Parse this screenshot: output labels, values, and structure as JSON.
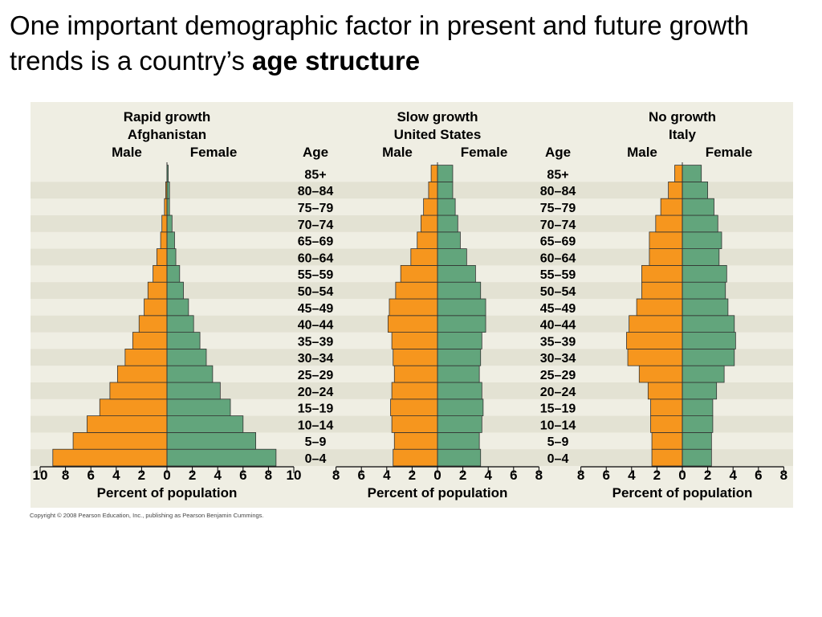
{
  "title": {
    "part1": "One important demographic factor in present and future growth trends is a country’s ",
    "part2": "age structure"
  },
  "copyright": "Copyright © 2008 Pearson Education, Inc., publishing as Pearson Benjamin Cummings.",
  "colors": {
    "male": "#f6961e",
    "female": "#62a57c",
    "band": "#e3e2d3",
    "background": "#efeee3",
    "outline": "#333333"
  },
  "chart_data": [
    {
      "type": "bar",
      "orientation": "horizontal-population-pyramid",
      "title": "Rapid growth",
      "subtitle": "Afghanistan",
      "male_label": "Male",
      "female_label": "Female",
      "age_label": "Age",
      "xlabel": "Percent of population",
      "xlim": [
        -10,
        10
      ],
      "xticks": [
        "10",
        "8",
        "6",
        "4",
        "2",
        "0",
        "2",
        "4",
        "6",
        "8",
        "10"
      ],
      "categories": [
        "0–4",
        "5–9",
        "10–14",
        "15–19",
        "20–24",
        "25–29",
        "30–34",
        "35–39",
        "40–44",
        "45–49",
        "50–54",
        "55–59",
        "60–64",
        "65–69",
        "70–74",
        "75–79",
        "80–84",
        "85+"
      ],
      "series": [
        {
          "name": "Male",
          "values": [
            9.0,
            7.4,
            6.3,
            5.3,
            4.5,
            3.9,
            3.3,
            2.7,
            2.2,
            1.8,
            1.5,
            1.1,
            0.8,
            0.5,
            0.4,
            0.2,
            0.1,
            0.0
          ]
        },
        {
          "name": "Female",
          "values": [
            8.6,
            7.0,
            6.0,
            5.0,
            4.2,
            3.6,
            3.1,
            2.6,
            2.1,
            1.7,
            1.3,
            1.0,
            0.7,
            0.6,
            0.4,
            0.2,
            0.2,
            0.1
          ]
        }
      ]
    },
    {
      "type": "bar",
      "orientation": "horizontal-population-pyramid",
      "title": "Slow growth",
      "subtitle": "United States",
      "male_label": "Male",
      "female_label": "Female",
      "age_label": "Age",
      "xlabel": "Percent of population",
      "xlim": [
        -8,
        8
      ],
      "xticks": [
        "8",
        "6",
        "4",
        "2",
        "0",
        "2",
        "4",
        "6",
        "8"
      ],
      "categories": [
        "0–4",
        "5–9",
        "10–14",
        "15–19",
        "20–24",
        "25–29",
        "30–34",
        "35–39",
        "40–44",
        "45–49",
        "50–54",
        "55–59",
        "60–64",
        "65–69",
        "70–74",
        "75–79",
        "80–84",
        "85+"
      ],
      "series": [
        {
          "name": "Male",
          "values": [
            3.5,
            3.4,
            3.6,
            3.7,
            3.6,
            3.4,
            3.5,
            3.6,
            3.9,
            3.8,
            3.3,
            2.9,
            2.1,
            1.6,
            1.3,
            1.1,
            0.7,
            0.5
          ]
        },
        {
          "name": "Female",
          "values": [
            3.4,
            3.3,
            3.5,
            3.6,
            3.5,
            3.3,
            3.4,
            3.5,
            3.8,
            3.8,
            3.4,
            3.0,
            2.3,
            1.8,
            1.6,
            1.4,
            1.2,
            1.2
          ]
        }
      ]
    },
    {
      "type": "bar",
      "orientation": "horizontal-population-pyramid",
      "title": "No growth",
      "subtitle": "Italy",
      "male_label": "Male",
      "female_label": "Female",
      "age_label": "",
      "xlabel": "Percent of population",
      "xlim": [
        -8,
        8
      ],
      "xticks": [
        "8",
        "6",
        "4",
        "2",
        "0",
        "2",
        "4",
        "6",
        "8"
      ],
      "categories": [
        "0–4",
        "5–9",
        "10–14",
        "15–19",
        "20–24",
        "25–29",
        "30–34",
        "35–39",
        "40–44",
        "45–49",
        "50–54",
        "55–59",
        "60–64",
        "65–69",
        "70–74",
        "75–79",
        "80–84",
        "85+"
      ],
      "series": [
        {
          "name": "Male",
          "values": [
            2.4,
            2.4,
            2.5,
            2.5,
            2.7,
            3.4,
            4.3,
            4.4,
            4.2,
            3.6,
            3.2,
            3.2,
            2.6,
            2.6,
            2.1,
            1.7,
            1.1,
            0.6
          ]
        },
        {
          "name": "Female",
          "values": [
            2.3,
            2.3,
            2.4,
            2.4,
            2.7,
            3.3,
            4.1,
            4.2,
            4.1,
            3.6,
            3.4,
            3.5,
            2.9,
            3.1,
            2.8,
            2.5,
            2.0,
            1.5
          ]
        }
      ]
    }
  ]
}
